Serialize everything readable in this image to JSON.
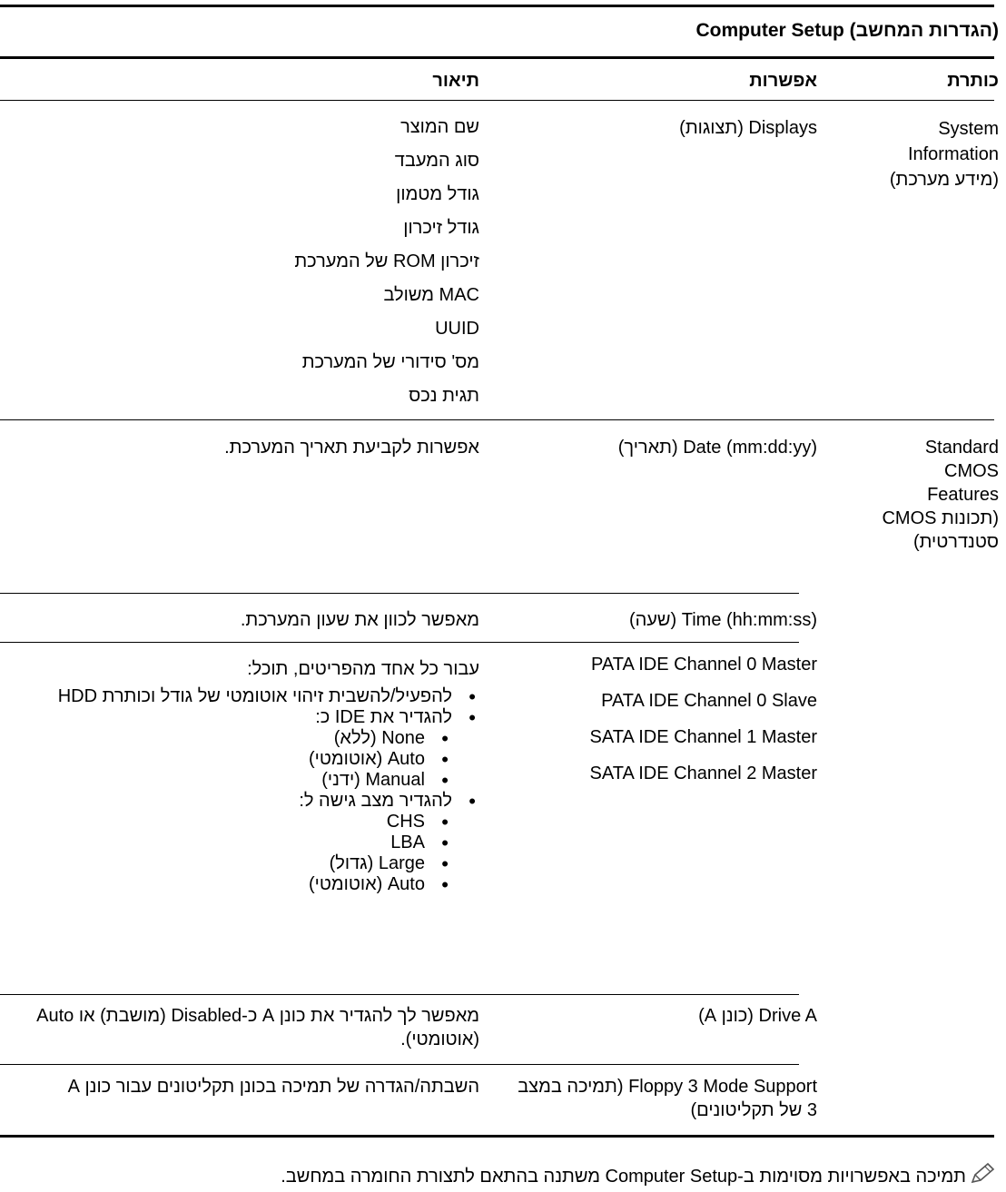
{
  "table": {
    "title": "Computer Setup (הגדרות המחשב)",
    "headers": {
      "heading": "כותרת",
      "option": "אפשרות",
      "description": "תיאור"
    },
    "sections": [
      {
        "heading": "System Information (מידע מערכת)",
        "rows": [
          {
            "option": "Displays (תצוגות)",
            "description": [
              "שם המוצר",
              "סוג המעבד",
              "גודל מטמון",
              "גודל זיכרון",
              "זיכרון ROM של המערכת",
              "MAC משולב",
              "UUID",
              "מס' סידורי של המערכת",
              "תגית נכס"
            ]
          }
        ]
      },
      {
        "heading": "Standard CMOS Features (תכונות CMOS סטנדרטית)",
        "rows": [
          {
            "option": "Date (mm:dd:yy) (תאריך)",
            "description": "אפשרות לקביעת תאריך המערכת."
          },
          {
            "option": "Time (hh:mm:ss) (שעה)",
            "description": "מאפשר לכוון את שעון המערכת."
          },
          {
            "options": [
              "PATA IDE Channel 0 Master",
              "PATA IDE Channel 0 Slave",
              "SATA IDE Channel 1 Master",
              "SATA IDE Channel 2 Master"
            ],
            "description_intro": "עבור כל אחד מהפריטים, תוכל:",
            "bullets": [
              {
                "level": 1,
                "text": "להפעיל/להשבית זיהוי אוטומטי של גודל וכותרת HDD"
              },
              {
                "level": 1,
                "text": "להגדיר את IDE כ:"
              },
              {
                "level": 2,
                "text": "None (ללא)"
              },
              {
                "level": 2,
                "text": "Auto (אוטומטי)"
              },
              {
                "level": 2,
                "text": "Manual (ידני)"
              },
              {
                "level": 1,
                "text": "להגדיר מצב גישה ל:"
              },
              {
                "level": 2,
                "text": "CHS"
              },
              {
                "level": 2,
                "text": "LBA"
              },
              {
                "level": 2,
                "text": "Large (גדול)"
              },
              {
                "level": 2,
                "text": "Auto (אוטומטי)"
              }
            ]
          },
          {
            "option": "Drive A (כונן A)",
            "description": "מאפשר לך להגדיר את כונן A כ-Disabled (מושבת) או Auto (אוטומטי)."
          },
          {
            "option": "Floppy 3 Mode Support (תמיכה במצב 3 של תקליטונים)",
            "description": "השבתה/הגדרה של תמיכה בכונן תקליטונים עבור כונן A"
          }
        ]
      }
    ]
  },
  "note": {
    "icon": "pencil-note-icon",
    "text": "תמיכה באפשרויות מסוימות ב-Computer Setup משתנה בהתאם לתצורת החומרה במחשב."
  }
}
